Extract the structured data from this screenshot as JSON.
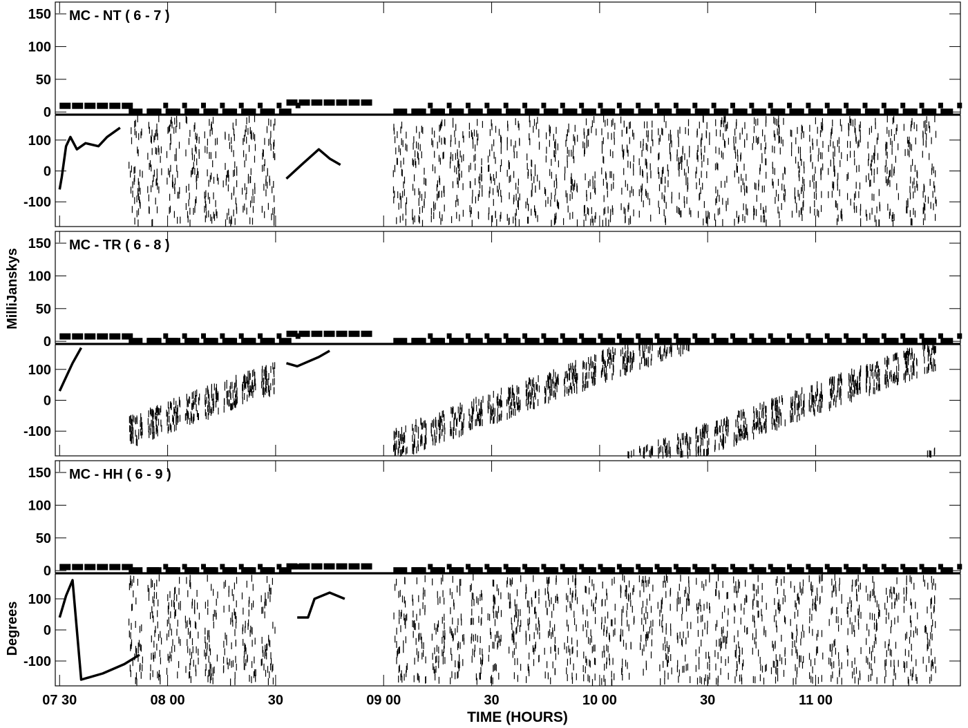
{
  "figure": {
    "ylabel_amp": "MilliJanskys",
    "ylabel_phase": "Degrees",
    "xlabel": "TIME (HOURS)",
    "x_ticks": [
      {
        "label": "07 30",
        "value": 7.5
      },
      {
        "label": "08 00",
        "value": 8.0
      },
      {
        "label": "30",
        "value": 8.5
      },
      {
        "label": "09 00",
        "value": 9.0
      },
      {
        "label": "30",
        "value": 9.5
      },
      {
        "label": "10 00",
        "value": 10.0
      },
      {
        "label": "30",
        "value": 10.5
      },
      {
        "label": "11 00",
        "value": 11.0
      }
    ]
  },
  "chart_data": [
    {
      "type": "scatter",
      "title": "MC - NT ( 6 - 7 )",
      "xlim": [
        7.48,
        11.67
      ],
      "amp_ylim": [
        -3,
        168
      ],
      "amp_ticks": [
        0,
        50,
        100,
        150
      ],
      "phase_ylim": [
        -180,
        180
      ],
      "phase_ticks": [
        -100,
        0,
        100
      ],
      "amp_blocks": [
        [
          7.5,
          7.8,
          10
        ],
        [
          8.55,
          8.95,
          15
        ]
      ],
      "amp_scan_level": 1,
      "cal_amp": 10,
      "scan_amp": 1,
      "phase_cal1": [
        [
          7.5,
          -60
        ],
        [
          7.51,
          -20
        ],
        [
          7.53,
          80
        ],
        [
          7.55,
          110
        ],
        [
          7.58,
          70
        ],
        [
          7.62,
          90
        ],
        [
          7.68,
          80
        ],
        [
          7.72,
          110
        ],
        [
          7.78,
          140
        ]
      ],
      "phase_cal2": [
        [
          8.55,
          -25
        ],
        [
          8.62,
          20
        ],
        [
          8.7,
          70
        ],
        [
          8.75,
          40
        ],
        [
          8.8,
          20
        ]
      ],
      "phase_trend": "wrap",
      "phase_offset": 0,
      "phase_slope": 0
    },
    {
      "type": "scatter",
      "title": "MC - TR ( 6 - 8 )",
      "xlim": [
        7.48,
        11.67
      ],
      "amp_ylim": [
        -3,
        168
      ],
      "amp_ticks": [
        0,
        50,
        100,
        150
      ],
      "phase_ylim": [
        -180,
        180
      ],
      "phase_ticks": [
        -100,
        0,
        100
      ],
      "amp_blocks": [
        [
          7.5,
          7.8,
          8
        ],
        [
          8.55,
          8.95,
          12
        ]
      ],
      "amp_scan_level": 1,
      "cal_amp": 8,
      "scan_amp": 1,
      "phase_cal1": [
        [
          7.5,
          30
        ],
        [
          7.52,
          60
        ],
        [
          7.56,
          120
        ],
        [
          7.6,
          170
        ]
      ],
      "phase_cal2": [
        [
          8.55,
          120
        ],
        [
          8.6,
          110
        ],
        [
          8.7,
          140
        ],
        [
          8.75,
          160
        ]
      ],
      "phase_trend": "ramp",
      "phase_offset": -160,
      "phase_slope": 260
    },
    {
      "type": "scatter",
      "title": "MC - HH ( 6 - 9 )",
      "xlim": [
        7.48,
        11.67
      ],
      "amp_ylim": [
        -3,
        168
      ],
      "amp_ticks": [
        0,
        50,
        100,
        150
      ],
      "phase_ylim": [
        -180,
        180
      ],
      "phase_ticks": [
        -100,
        0,
        100
      ],
      "amp_blocks": [
        [
          7.5,
          7.8,
          6
        ],
        [
          8.55,
          8.95,
          7
        ]
      ],
      "amp_scan_level": 1,
      "cal_amp": 6,
      "scan_amp": 1,
      "phase_cal1": [
        [
          7.5,
          40
        ],
        [
          7.53,
          110
        ],
        [
          7.56,
          160
        ],
        [
          7.6,
          -160
        ],
        [
          7.7,
          -140
        ],
        [
          7.8,
          -110
        ],
        [
          7.87,
          -80
        ]
      ],
      "phase_cal2": [
        [
          8.6,
          40
        ],
        [
          8.65,
          40
        ],
        [
          8.68,
          100
        ],
        [
          8.75,
          120
        ],
        [
          8.82,
          100
        ]
      ],
      "phase_trend": "wrap2",
      "phase_offset": 0,
      "phase_slope": 0
    }
  ]
}
